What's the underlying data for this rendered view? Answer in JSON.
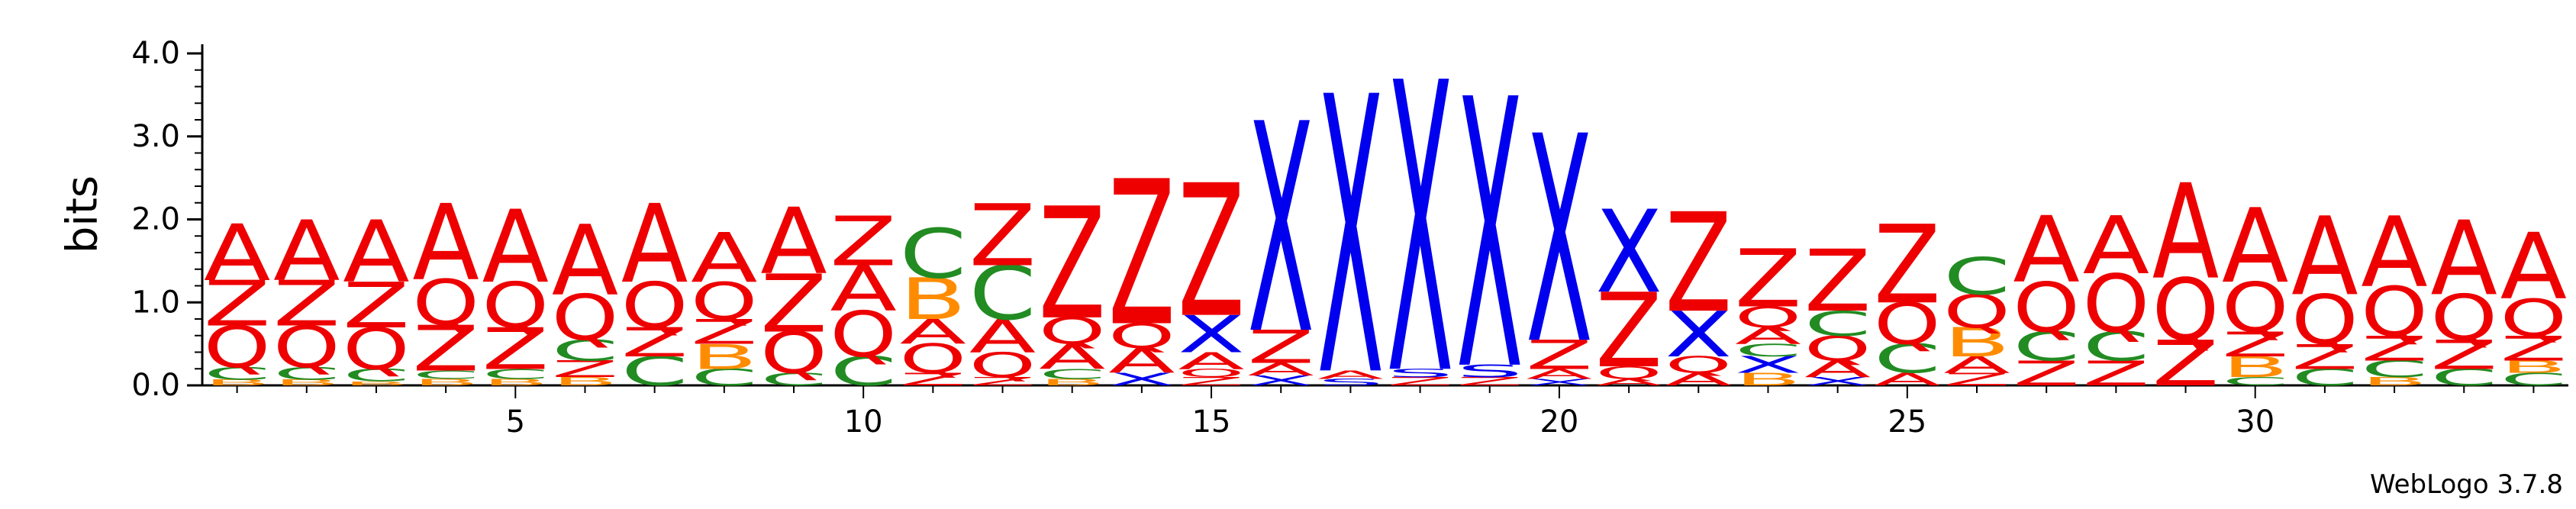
{
  "chart_data": {
    "type": "sequence-logo",
    "ylabel": "bits",
    "ylim": [
      0,
      4.0
    ],
    "yticks": [
      "0.0",
      "1.0",
      "2.0",
      "3.0",
      "4.0"
    ],
    "xticks": [
      5,
      10,
      15,
      20,
      25,
      30
    ],
    "credit": "WebLogo 3.7.8",
    "colors": {
      "A": "#ee0000",
      "Q": "#ee0000",
      "Z": "#ee0000",
      "C": "#228b22",
      "B": "#ff8c00",
      "X": "#0000ee",
      "S": "#0000ee"
    },
    "positions": [
      {
        "pos": 1,
        "letters": [
          [
            "B",
            0.07
          ],
          [
            "C",
            0.15
          ],
          [
            "Q",
            0.5
          ],
          [
            "Z",
            0.55
          ],
          [
            "A",
            0.68
          ]
        ]
      },
      {
        "pos": 2,
        "letters": [
          [
            "B",
            0.07
          ],
          [
            "C",
            0.15
          ],
          [
            "Q",
            0.5
          ],
          [
            "Z",
            0.55
          ],
          [
            "A",
            0.73
          ]
        ]
      },
      {
        "pos": 3,
        "letters": [
          [
            "B",
            0.05
          ],
          [
            "C",
            0.15
          ],
          [
            "Q",
            0.5
          ],
          [
            "Z",
            0.55
          ],
          [
            "A",
            0.75
          ]
        ]
      },
      {
        "pos": 4,
        "letters": [
          [
            "B",
            0.08
          ],
          [
            "C",
            0.1
          ],
          [
            "Z",
            0.55
          ],
          [
            "Q",
            0.55
          ],
          [
            "A",
            0.92
          ]
        ]
      },
      {
        "pos": 5,
        "letters": [
          [
            "B",
            0.08
          ],
          [
            "C",
            0.12
          ],
          [
            "Z",
            0.5
          ],
          [
            "Q",
            0.55
          ],
          [
            "A",
            0.88
          ]
        ]
      },
      {
        "pos": 6,
        "letters": [
          [
            "B",
            0.1
          ],
          [
            "Z",
            0.2
          ],
          [
            "C",
            0.25
          ],
          [
            "Q",
            0.55
          ],
          [
            "A",
            0.85
          ]
        ]
      },
      {
        "pos": 7,
        "letters": [
          [
            "C",
            0.35
          ],
          [
            "Z",
            0.35
          ],
          [
            "Q",
            0.55
          ],
          [
            "A",
            0.95
          ]
        ]
      },
      {
        "pos": 8,
        "letters": [
          [
            "C",
            0.2
          ],
          [
            "B",
            0.3
          ],
          [
            "Z",
            0.3
          ],
          [
            "Q",
            0.45
          ],
          [
            "A",
            0.6
          ]
        ]
      },
      {
        "pos": 9,
        "letters": [
          [
            "C",
            0.15
          ],
          [
            "Q",
            0.5
          ],
          [
            "Z",
            0.7
          ],
          [
            "A",
            0.8
          ]
        ]
      },
      {
        "pos": 10,
        "letters": [
          [
            "C",
            0.35
          ],
          [
            "Q",
            0.55
          ],
          [
            "A",
            0.55
          ],
          [
            "Z",
            0.6
          ]
        ]
      },
      {
        "pos": 11,
        "letters": [
          [
            "Z",
            0.15
          ],
          [
            "Q",
            0.35
          ],
          [
            "A",
            0.3
          ],
          [
            "B",
            0.5
          ],
          [
            "C",
            0.6
          ]
        ]
      },
      {
        "pos": 12,
        "letters": [
          [
            "Z",
            0.1
          ],
          [
            "Q",
            0.3
          ],
          [
            "A",
            0.4
          ],
          [
            "C",
            0.65
          ],
          [
            "Z",
            0.75
          ]
        ]
      },
      {
        "pos": 13,
        "letters": [
          [
            "B",
            0.08
          ],
          [
            "C",
            0.12
          ],
          [
            "A",
            0.3
          ],
          [
            "Q",
            0.32
          ],
          [
            "Z",
            1.35
          ]
        ]
      },
      {
        "pos": 14,
        "letters": [
          [
            "X",
            0.15
          ],
          [
            "A",
            0.3
          ],
          [
            "Q",
            0.3
          ],
          [
            "Z",
            1.75
          ]
        ]
      },
      {
        "pos": 15,
        "letters": [
          [
            "Z",
            0.1
          ],
          [
            "Q",
            0.1
          ],
          [
            "A",
            0.2
          ],
          [
            "X",
            0.45
          ],
          [
            "Z",
            1.6
          ]
        ]
      },
      {
        "pos": 16,
        "letters": [
          [
            "X",
            0.12
          ],
          [
            "A",
            0.15
          ],
          [
            "Z",
            0.4
          ],
          [
            "X",
            2.53
          ]
        ]
      },
      {
        "pos": 17,
        "letters": [
          [
            "S",
            0.08
          ],
          [
            "A",
            0.1
          ],
          [
            "X",
            3.35
          ]
        ]
      },
      {
        "pos": 18,
        "letters": [
          [
            "Z",
            0.1
          ],
          [
            "S",
            0.1
          ],
          [
            "X",
            3.5
          ]
        ]
      },
      {
        "pos": 19,
        "letters": [
          [
            "Z",
            0.1
          ],
          [
            "S",
            0.15
          ],
          [
            "X",
            3.25
          ]
        ]
      },
      {
        "pos": 20,
        "letters": [
          [
            "X",
            0.08
          ],
          [
            "A",
            0.12
          ],
          [
            "Z",
            0.35
          ],
          [
            "X",
            2.5
          ]
        ]
      },
      {
        "pos": 21,
        "letters": [
          [
            "A",
            0.08
          ],
          [
            "Q",
            0.15
          ],
          [
            "Z",
            0.9
          ],
          [
            "X",
            1.0
          ]
        ]
      },
      {
        "pos": 22,
        "letters": [
          [
            "A",
            0.15
          ],
          [
            "Q",
            0.2
          ],
          [
            "X",
            0.55
          ],
          [
            "Z",
            1.2
          ]
        ]
      },
      {
        "pos": 23,
        "letters": [
          [
            "B",
            0.15
          ],
          [
            "X",
            0.2
          ],
          [
            "C",
            0.15
          ],
          [
            "A",
            0.2
          ],
          [
            "Q",
            0.25
          ],
          [
            "Z",
            0.7
          ]
        ]
      },
      {
        "pos": 24,
        "letters": [
          [
            "X",
            0.1
          ],
          [
            "A",
            0.2
          ],
          [
            "Q",
            0.3
          ],
          [
            "C",
            0.3
          ],
          [
            "Z",
            0.75
          ]
        ]
      },
      {
        "pos": 25,
        "letters": [
          [
            "A",
            0.15
          ],
          [
            "C",
            0.35
          ],
          [
            "Q",
            0.5
          ],
          [
            "Z",
            0.95
          ]
        ]
      },
      {
        "pos": 26,
        "letters": [
          [
            "Z",
            0.15
          ],
          [
            "A",
            0.2
          ],
          [
            "B",
            0.35
          ],
          [
            "Q",
            0.4
          ],
          [
            "C",
            0.45
          ]
        ]
      },
      {
        "pos": 27,
        "letters": [
          [
            "Z",
            0.3
          ],
          [
            "C",
            0.35
          ],
          [
            "Q",
            0.6
          ],
          [
            "A",
            0.8
          ]
        ]
      },
      {
        "pos": 28,
        "letters": [
          [
            "Z",
            0.3
          ],
          [
            "C",
            0.35
          ],
          [
            "Q",
            0.7
          ],
          [
            "A",
            0.7
          ]
        ]
      },
      {
        "pos": 29,
        "letters": [
          [
            "Z",
            0.55
          ],
          [
            "Q",
            0.75
          ],
          [
            "A",
            1.15
          ]
        ]
      },
      {
        "pos": 30,
        "letters": [
          [
            "C",
            0.1
          ],
          [
            "B",
            0.25
          ],
          [
            "Z",
            0.3
          ],
          [
            "Q",
            0.6
          ],
          [
            "A",
            0.9
          ]
        ]
      },
      {
        "pos": 31,
        "letters": [
          [
            "C",
            0.2
          ],
          [
            "Z",
            0.3
          ],
          [
            "Q",
            0.6
          ],
          [
            "A",
            0.95
          ]
        ]
      },
      {
        "pos": 32,
        "letters": [
          [
            "B",
            0.1
          ],
          [
            "C",
            0.2
          ],
          [
            "Z",
            0.3
          ],
          [
            "Q",
            0.6
          ],
          [
            "A",
            0.85
          ]
        ]
      },
      {
        "pos": 33,
        "letters": [
          [
            "C",
            0.2
          ],
          [
            "Z",
            0.35
          ],
          [
            "Q",
            0.55
          ],
          [
            "A",
            0.9
          ]
        ]
      },
      {
        "pos": 34,
        "letters": [
          [
            "C",
            0.15
          ],
          [
            "B",
            0.15
          ],
          [
            "Z",
            0.3
          ],
          [
            "Q",
            0.45
          ],
          [
            "A",
            0.8
          ]
        ]
      }
    ]
  }
}
